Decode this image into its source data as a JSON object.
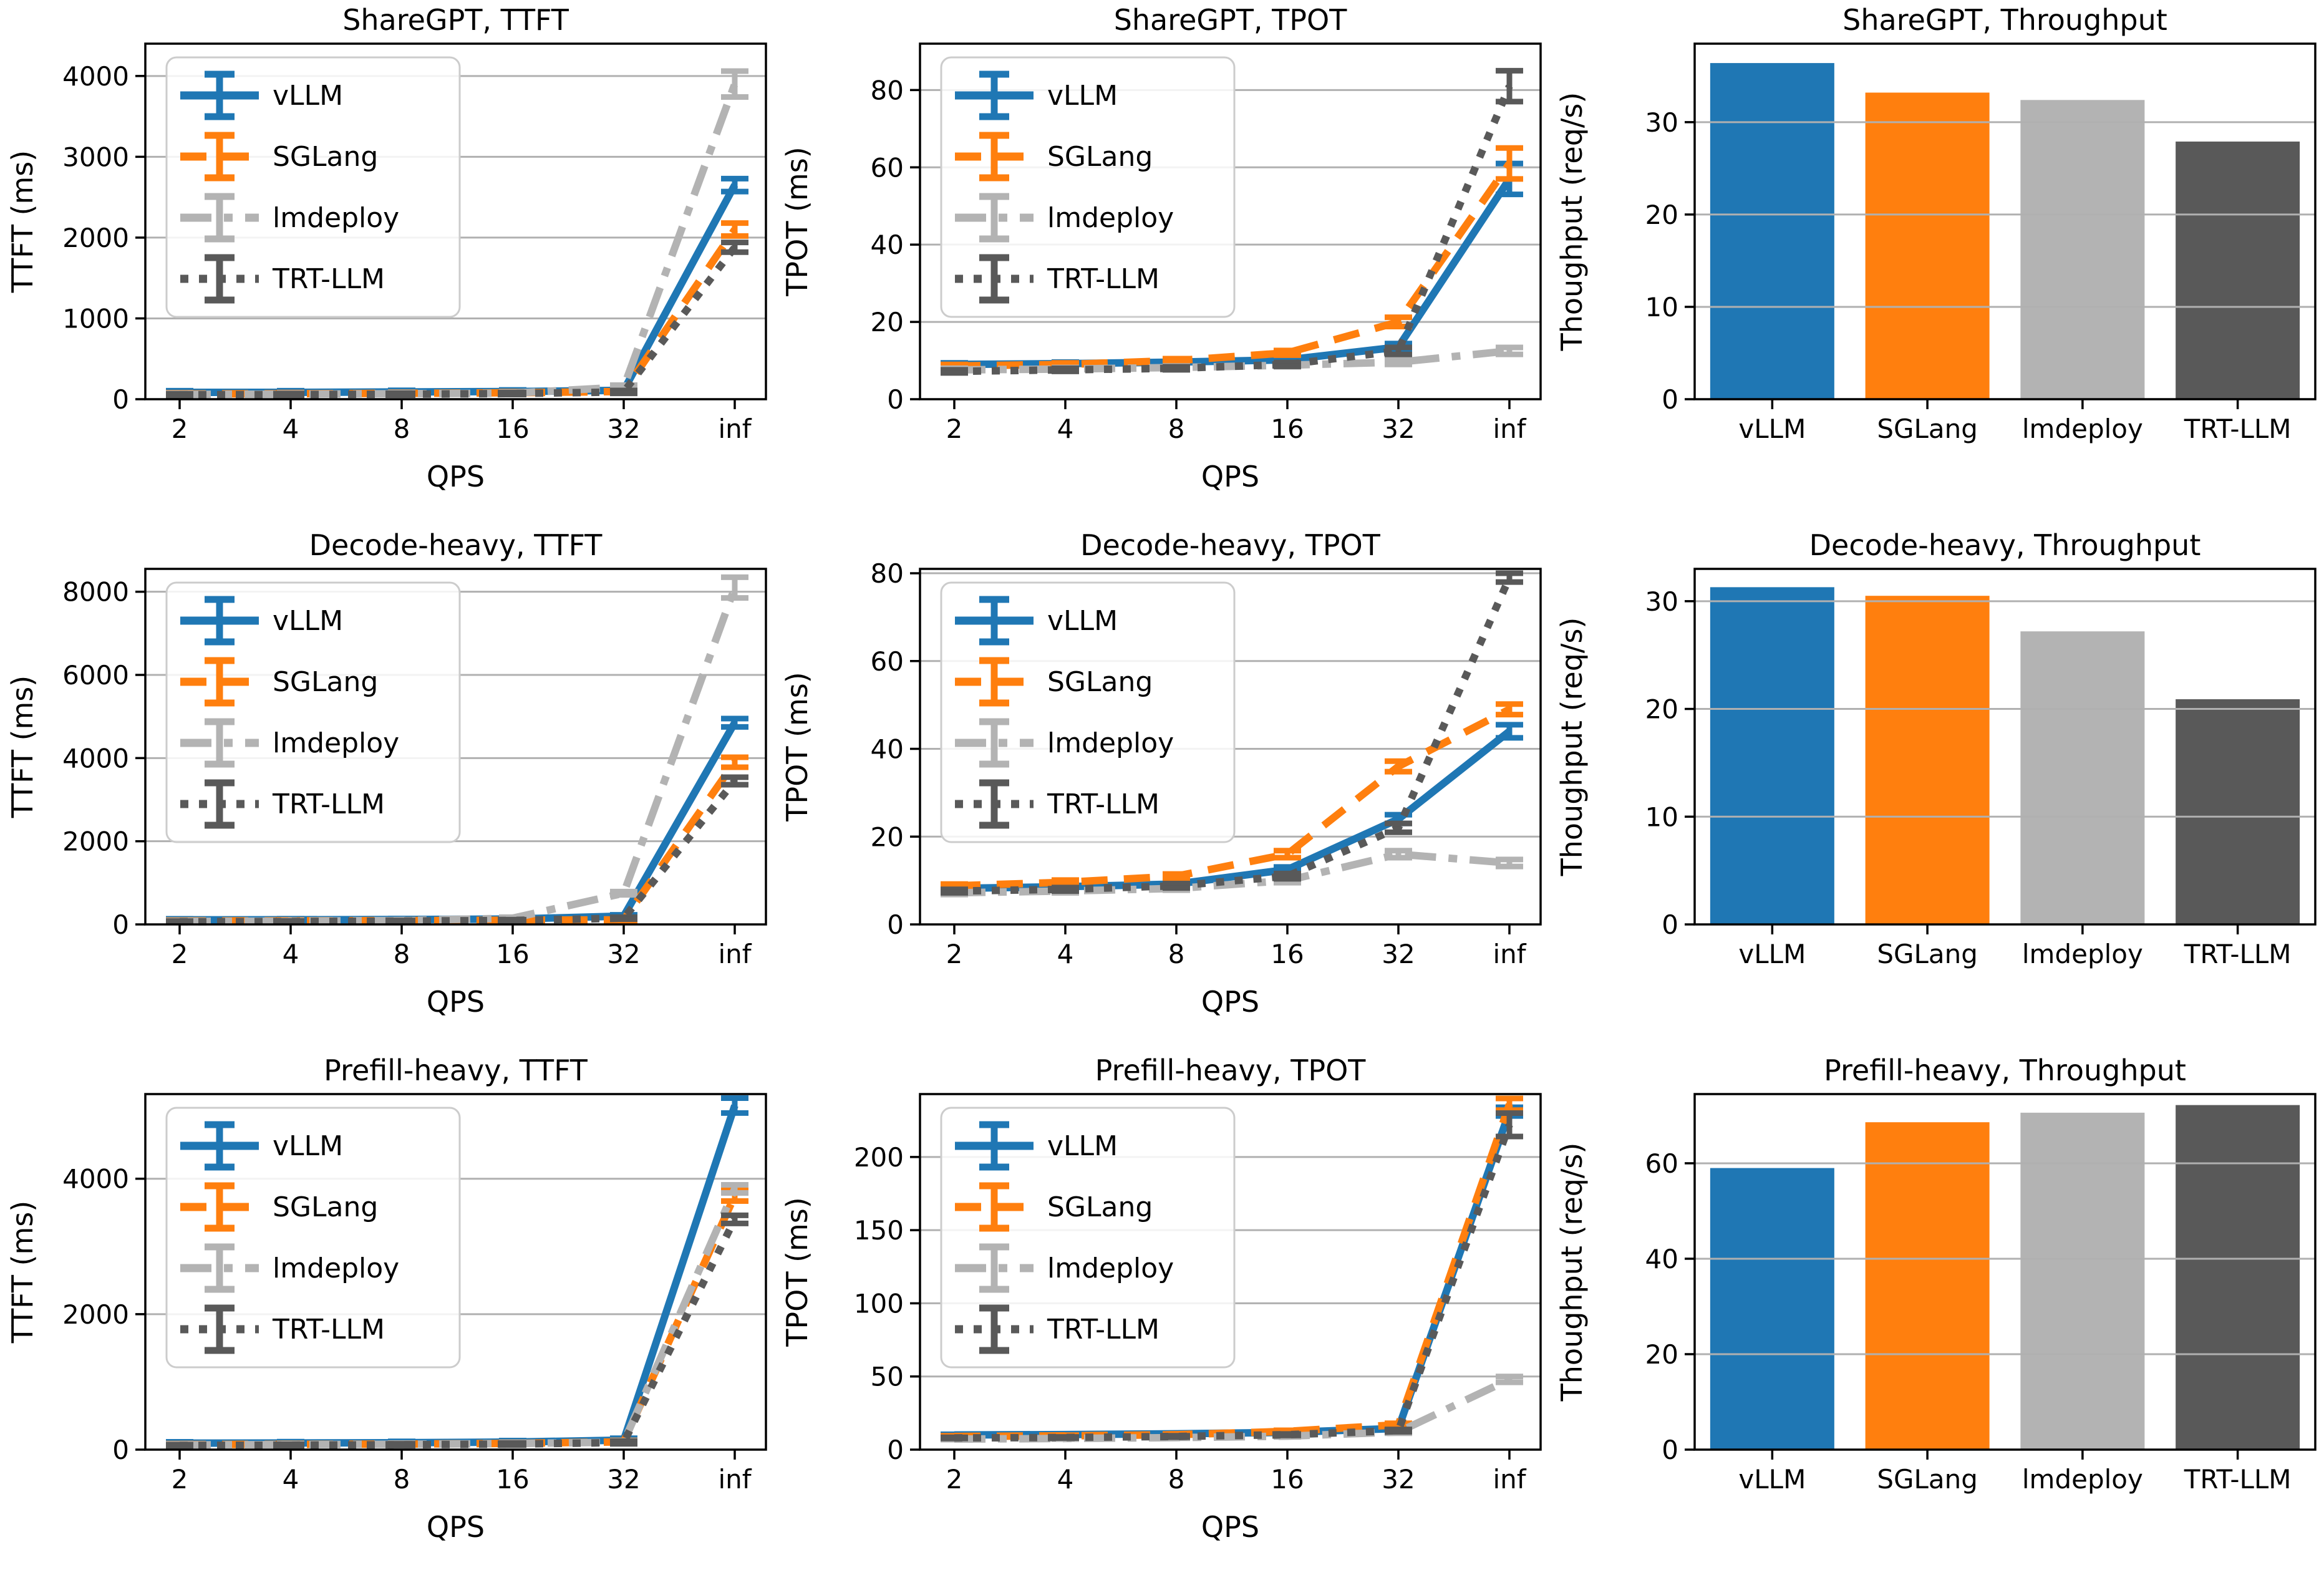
{
  "figure": {
    "background": "#ffffff",
    "grid_color": "#b0b0b0",
    "spine_color": "#000000",
    "rows": [
      "ShareGPT",
      "Decode-heavy",
      "Prefill-heavy"
    ],
    "columns": [
      "TTFT",
      "TPOT",
      "Throughput"
    ]
  },
  "frameworks": [
    {
      "name": "vLLM",
      "color": "#1f77b4",
      "linestyle": "solid"
    },
    {
      "name": "SGLang",
      "color": "#ff7f0e",
      "linestyle": "dashed"
    },
    {
      "name": "lmdeploy",
      "color": "#b3b3b3",
      "linestyle": "dashdot"
    },
    {
      "name": "TRT-LLM",
      "color": "#595959",
      "linestyle": "dotted"
    }
  ],
  "chart_data": [
    {
      "slug": "sharegpt-ttft",
      "type": "line",
      "title": "ShareGPT, TTFT",
      "xlabel": "QPS",
      "ylabel": "TTFT (ms)",
      "xticklabels": [
        "2",
        "4",
        "8",
        "16",
        "32",
        "inf"
      ],
      "yticks": [
        0,
        1000,
        2000,
        3000,
        4000
      ],
      "ylim": [
        0,
        4400
      ],
      "grid": "y",
      "legend": true,
      "legend_position": "upper left",
      "series": [
        {
          "name": "vLLM",
          "values": [
            85,
            85,
            90,
            95,
            110,
            2650
          ],
          "yerr": [
            20,
            20,
            20,
            20,
            25,
            80
          ]
        },
        {
          "name": "SGLang",
          "values": [
            65,
            68,
            72,
            80,
            95,
            2100
          ],
          "yerr": [
            15,
            15,
            15,
            15,
            20,
            80
          ]
        },
        {
          "name": "lmdeploy",
          "values": [
            60,
            63,
            68,
            75,
            150,
            3900
          ],
          "yerr": [
            15,
            15,
            15,
            15,
            25,
            160
          ]
        },
        {
          "name": "TRT-LLM",
          "values": [
            55,
            58,
            62,
            70,
            90,
            1880
          ],
          "yerr": [
            12,
            12,
            12,
            12,
            18,
            60
          ]
        }
      ]
    },
    {
      "slug": "sharegpt-tpot",
      "type": "line",
      "title": "ShareGPT, TPOT",
      "xlabel": "QPS",
      "ylabel": "TPOT (ms)",
      "xticklabels": [
        "2",
        "4",
        "8",
        "16",
        "32",
        "inf"
      ],
      "yticks": [
        0,
        20,
        40,
        60,
        80
      ],
      "ylim": [
        0,
        92
      ],
      "grid": "y",
      "legend": true,
      "legend_position": "upper left",
      "series": [
        {
          "name": "vLLM",
          "values": [
            9.0,
            9.2,
            9.6,
            10.2,
            13.5,
            57
          ],
          "yerr": [
            0.4,
            0.4,
            0.4,
            0.5,
            0.9,
            4
          ]
        },
        {
          "name": "SGLang",
          "values": [
            8.6,
            9.0,
            10.0,
            12.0,
            20.0,
            61
          ],
          "yerr": [
            0.4,
            0.4,
            0.5,
            0.6,
            1.2,
            4
          ]
        },
        {
          "name": "lmdeploy",
          "values": [
            7.6,
            7.8,
            8.2,
            8.8,
            9.6,
            12.5
          ],
          "yerr": [
            0.4,
            0.4,
            0.4,
            0.4,
            0.6,
            0.9
          ]
        },
        {
          "name": "TRT-LLM",
          "values": [
            7.2,
            7.6,
            8.0,
            9.0,
            12.5,
            81
          ],
          "yerr": [
            0.4,
            0.4,
            0.4,
            0.5,
            0.9,
            4
          ]
        }
      ]
    },
    {
      "slug": "sharegpt-throughput",
      "type": "bar",
      "title": "ShareGPT, Throughput",
      "xlabel": "",
      "ylabel": "Thoughput (req/s)",
      "categories": [
        "vLLM",
        "SGLang",
        "lmdeploy",
        "TRT-LLM"
      ],
      "values": [
        36.4,
        33.2,
        32.4,
        27.9
      ],
      "yticks": [
        0,
        10,
        20,
        30
      ],
      "ylim": [
        0,
        38.5
      ],
      "grid": "y",
      "legend": false
    },
    {
      "slug": "decode-heavy-ttft",
      "type": "line",
      "title": "Decode-heavy, TTFT",
      "xlabel": "QPS",
      "ylabel": "TTFT (ms)",
      "xticklabels": [
        "2",
        "4",
        "8",
        "16",
        "32",
        "inf"
      ],
      "yticks": [
        0,
        2000,
        4000,
        6000,
        8000
      ],
      "ylim": [
        0,
        8550
      ],
      "grid": "y",
      "legend": true,
      "legend_position": "upper left",
      "series": [
        {
          "name": "vLLM",
          "values": [
            110,
            112,
            118,
            130,
            200,
            4850
          ],
          "yerr": [
            25,
            25,
            25,
            25,
            30,
            100
          ]
        },
        {
          "name": "SGLang",
          "values": [
            85,
            88,
            92,
            100,
            110,
            3900
          ],
          "yerr": [
            20,
            20,
            20,
            20,
            25,
            120
          ]
        },
        {
          "name": "lmdeploy",
          "values": [
            75,
            80,
            95,
            150,
            750,
            8100
          ],
          "yerr": [
            18,
            18,
            20,
            25,
            40,
            250
          ]
        },
        {
          "name": "TRT-LLM",
          "values": [
            65,
            70,
            80,
            95,
            150,
            3450
          ],
          "yerr": [
            15,
            15,
            15,
            20,
            25,
            90
          ]
        }
      ]
    },
    {
      "slug": "decode-heavy-tpot",
      "type": "line",
      "title": "Decode-heavy, TPOT",
      "xlabel": "QPS",
      "ylabel": "TPOT (ms)",
      "xticklabels": [
        "2",
        "4",
        "8",
        "16",
        "32",
        "inf"
      ],
      "yticks": [
        0,
        20,
        40,
        60,
        80
      ],
      "ylim": [
        0,
        81
      ],
      "grid": "y",
      "legend": true,
      "legend_position": "upper left",
      "series": [
        {
          "name": "vLLM",
          "values": [
            8.2,
            8.6,
            9.2,
            12.5,
            24,
            44
          ],
          "yerr": [
            0.4,
            0.4,
            0.5,
            0.6,
            1.0,
            1.5
          ]
        },
        {
          "name": "SGLang",
          "values": [
            8.8,
            9.6,
            11.0,
            16.0,
            36,
            49
          ],
          "yerr": [
            0.4,
            0.5,
            0.5,
            0.8,
            1.2,
            1.2
          ]
        },
        {
          "name": "lmdeploy",
          "values": [
            7.2,
            7.6,
            8.2,
            10.0,
            16,
            14
          ],
          "yerr": [
            0.4,
            0.4,
            0.4,
            0.5,
            0.8,
            0.8
          ]
        },
        {
          "name": "TRT-LLM",
          "values": [
            7.6,
            8.0,
            8.8,
            11.0,
            22,
            79
          ],
          "yerr": [
            0.4,
            0.4,
            0.5,
            0.6,
            1.0,
            1.0
          ]
        }
      ]
    },
    {
      "slug": "decode-heavy-throughput",
      "type": "bar",
      "title": "Decode-heavy, Throughput",
      "xlabel": "",
      "ylabel": "Thoughput (req/s)",
      "categories": [
        "vLLM",
        "SGLang",
        "lmdeploy",
        "TRT-LLM"
      ],
      "values": [
        31.3,
        30.5,
        27.2,
        20.9
      ],
      "yticks": [
        0,
        10,
        20,
        30
      ],
      "ylim": [
        0,
        33
      ],
      "grid": "y",
      "legend": false
    },
    {
      "slug": "prefill-heavy-ttft",
      "type": "line",
      "title": "Prefill-heavy, TTFT",
      "xlabel": "QPS",
      "ylabel": "TTFT (ms)",
      "xticklabels": [
        "2",
        "4",
        "8",
        "16",
        "32",
        "inf"
      ],
      "yticks": [
        0,
        2000,
        4000
      ],
      "ylim": [
        0,
        5250
      ],
      "grid": "y",
      "legend": true,
      "legend_position": "upper left",
      "series": [
        {
          "name": "vLLM",
          "values": [
            95,
            98,
            102,
            112,
            140,
            5080
          ],
          "yerr": [
            20,
            20,
            20,
            22,
            28,
            110
          ]
        },
        {
          "name": "SGLang",
          "values": [
            75,
            78,
            82,
            92,
            115,
            3750
          ],
          "yerr": [
            15,
            15,
            15,
            18,
            22,
            80
          ]
        },
        {
          "name": "lmdeploy",
          "values": [
            70,
            74,
            80,
            90,
            110,
            3850
          ],
          "yerr": [
            15,
            15,
            15,
            18,
            22,
            60
          ]
        },
        {
          "name": "TRT-LLM",
          "values": [
            62,
            66,
            72,
            82,
            105,
            3400
          ],
          "yerr": [
            12,
            12,
            14,
            16,
            20,
            60
          ]
        }
      ]
    },
    {
      "slug": "prefill-heavy-tpot",
      "type": "line",
      "title": "Prefill-heavy, TPOT",
      "xlabel": "QPS",
      "ylabel": "TPOT (ms)",
      "xticklabels": [
        "2",
        "4",
        "8",
        "16",
        "32",
        "inf"
      ],
      "yticks": [
        0,
        50,
        100,
        150,
        200
      ],
      "ylim": [
        0,
        243
      ],
      "grid": "y",
      "legend": true,
      "legend_position": "upper left",
      "series": [
        {
          "name": "vLLM",
          "values": [
            10.0,
            10.3,
            10.8,
            11.8,
            14.5,
            231
          ],
          "yerr": [
            0.5,
            0.5,
            0.5,
            0.6,
            0.9,
            3
          ]
        },
        {
          "name": "SGLang",
          "values": [
            9.0,
            9.4,
            10.2,
            12.5,
            17.0,
            236
          ],
          "yerr": [
            0.5,
            0.5,
            0.5,
            0.7,
            1.0,
            4
          ]
        },
        {
          "name": "lmdeploy",
          "values": [
            7.2,
            7.6,
            8.2,
            9.2,
            12.0,
            48
          ],
          "yerr": [
            0.4,
            0.4,
            0.4,
            0.5,
            0.8,
            2
          ]
        },
        {
          "name": "TRT-LLM",
          "values": [
            8.0,
            8.3,
            9.0,
            10.2,
            13.0,
            222
          ],
          "yerr": [
            0.4,
            0.4,
            0.5,
            0.5,
            0.8,
            8
          ]
        }
      ]
    },
    {
      "slug": "prefill-heavy-throughput",
      "type": "bar",
      "title": "Prefill-heavy, Throughput",
      "xlabel": "",
      "ylabel": "Thoughput (req/s)",
      "categories": [
        "vLLM",
        "SGLang",
        "lmdeploy",
        "TRT-LLM"
      ],
      "values": [
        59.0,
        68.6,
        70.6,
        72.2
      ],
      "yticks": [
        0,
        20,
        40,
        60
      ],
      "ylim": [
        0,
        74.5
      ],
      "grid": "y",
      "legend": false
    }
  ]
}
